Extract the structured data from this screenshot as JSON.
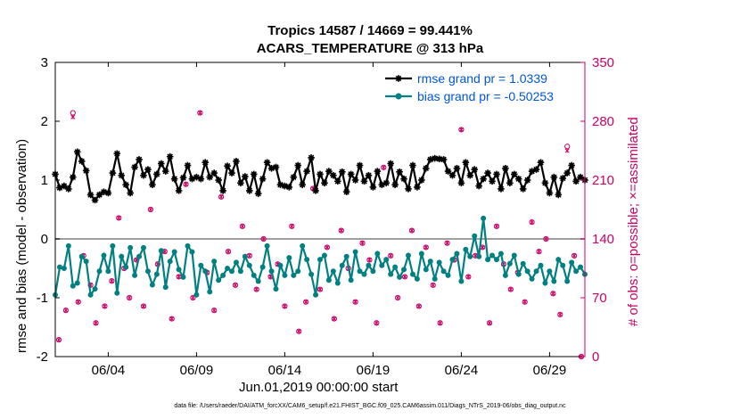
{
  "title_line1": "Tropics 14587 / 14669 = 99.441%",
  "title_line2": "ACARS_TEMPERATURE @ 313 hPa",
  "footer": "data file: /Users/raeder/DAI/ATM_forcXX/CAM6_setup/f.e21.FHIST_BGC.f09_025.CAM6assim.011/Diags_NTrS_2019-06/obs_diag_output.nc",
  "chart_data": {
    "type": "line",
    "title": "Tropics 14587 / 14669 = 99.441%\nACARS_TEMPERATURE @ 313 hPa",
    "xlabel": "Jun.01,2019 00:00:00 start",
    "ylabel": "rmse and bias (model - observation)",
    "ylabel_right": "# of obs: o=possible; ×=assimilated",
    "xlim": [
      0,
      30
    ],
    "ylim": [
      -2,
      3
    ],
    "ylim_right": [
      0,
      350
    ],
    "x_ticks": [
      3,
      8,
      13,
      18,
      23,
      28
    ],
    "x_tick_labels": [
      "06/04",
      "06/09",
      "06/14",
      "06/19",
      "06/24",
      "06/29"
    ],
    "y_ticks": [
      -2,
      -1,
      0,
      1,
      2,
      3
    ],
    "y_tick_labels": [
      "-2",
      "-1",
      "0",
      "1",
      "2",
      "3"
    ],
    "y_right_ticks": [
      0,
      70,
      140,
      210,
      280,
      350
    ],
    "y_right_tick_labels": [
      "0",
      "70",
      "140",
      "210",
      "280",
      "350"
    ],
    "colors": {
      "rmse": "#000000",
      "bias": "#008080",
      "obs": "#cc0066",
      "legend_text": "#0055dd",
      "zero_line": "#a0a0a0"
    },
    "legend": {
      "position": "top-right",
      "entries": [
        "rmse grand pr = 1.0339",
        "bias grand pr = -0.50253"
      ]
    },
    "series": [
      {
        "name": "rmse grand pr = 1.0339",
        "x": [
          0.0,
          0.25,
          0.5,
          0.75,
          1.0,
          1.25,
          1.5,
          1.75,
          2.0,
          2.25,
          2.5,
          2.75,
          3.0,
          3.25,
          3.5,
          3.75,
          4.0,
          4.25,
          4.5,
          4.75,
          5.0,
          5.25,
          5.5,
          5.75,
          6.0,
          6.25,
          6.5,
          6.75,
          7.0,
          7.25,
          7.5,
          7.75,
          8.0,
          8.25,
          8.5,
          8.75,
          9.0,
          9.25,
          9.5,
          9.75,
          10.0,
          10.25,
          10.5,
          10.75,
          11.0,
          11.25,
          11.5,
          11.75,
          12.0,
          12.25,
          12.5,
          12.75,
          13.0,
          13.25,
          13.5,
          13.75,
          14.0,
          14.25,
          14.5,
          14.75,
          15.0,
          15.25,
          15.5,
          15.75,
          16.0,
          16.25,
          16.5,
          16.75,
          17.0,
          17.25,
          17.5,
          17.75,
          18.0,
          18.25,
          18.5,
          18.75,
          19.0,
          19.25,
          19.5,
          19.75,
          20.0,
          20.25,
          20.5,
          20.75,
          21.0,
          21.25,
          21.5,
          21.75,
          22.0,
          22.25,
          22.5,
          22.75,
          23.0,
          23.25,
          23.5,
          23.75,
          24.0,
          24.25,
          24.5,
          24.75,
          25.0,
          25.25,
          25.5,
          25.75,
          26.0,
          26.25,
          26.5,
          26.75,
          27.0,
          27.25,
          27.5,
          27.75,
          28.0,
          28.25,
          28.5,
          28.75,
          29.0,
          29.25,
          29.5,
          29.75,
          30.0
        ],
        "values": [
          1.1,
          0.87,
          0.9,
          0.85,
          1.05,
          1.48,
          1.32,
          1.16,
          0.75,
          0.66,
          0.75,
          0.8,
          0.78,
          1.12,
          1.45,
          1.08,
          0.92,
          0.78,
          1.22,
          1.35,
          1.08,
          1.18,
          0.92,
          1.1,
          1.28,
          1.15,
          1.4,
          1.02,
          0.82,
          1.04,
          1.25,
          1.02,
          1.05,
          1.02,
          1.3,
          1.05,
          1.12,
          1.0,
          0.82,
          1.24,
          1.12,
          1.32,
          0.95,
          1.06,
          0.82,
          1.1,
          0.77,
          1.02,
          1.3,
          1.2,
          1.22,
          0.92,
          0.9,
          0.88,
          1.05,
          1.25,
          0.92,
          1.15,
          1.38,
          0.82,
          1.1,
          0.95,
          1.15,
          1.08,
          0.98,
          1.14,
          0.8,
          1.1,
          1.0,
          1.25,
          0.98,
          1.08,
          0.88,
          1.15,
          0.92,
          0.95,
          1.28,
          0.92,
          1.14,
          1.02,
          0.85,
          1.25,
          0.88,
          1.0,
          1.2,
          1.35,
          1.37,
          1.36,
          1.35,
          1.15,
          1.08,
          1.2,
          0.95,
          1.3,
          1.08,
          1.18,
          0.9,
          1.02,
          1.12,
          0.98,
          1.1,
          0.85,
          1.2,
          0.95,
          1.1,
          1.02,
          0.85,
          1.0,
          1.15,
          1.18,
          1.3,
          0.95,
          0.78,
          1.05,
          0.75,
          1.03,
          1.12,
          1.25,
          0.98,
          1.05,
          1.0
        ]
      },
      {
        "name": "bias grand pr = -0.50253",
        "x": [
          0.0,
          0.25,
          0.5,
          0.75,
          1.0,
          1.25,
          1.5,
          1.75,
          2.0,
          2.25,
          2.5,
          2.75,
          3.0,
          3.25,
          3.5,
          3.75,
          4.0,
          4.25,
          4.5,
          4.75,
          5.0,
          5.25,
          5.5,
          5.75,
          6.0,
          6.25,
          6.5,
          6.75,
          7.0,
          7.25,
          7.5,
          7.75,
          8.0,
          8.25,
          8.5,
          8.75,
          9.0,
          9.25,
          9.5,
          9.75,
          10.0,
          10.25,
          10.5,
          10.75,
          11.0,
          11.25,
          11.5,
          11.75,
          12.0,
          12.25,
          12.5,
          12.75,
          13.0,
          13.25,
          13.5,
          13.75,
          14.0,
          14.25,
          14.5,
          14.75,
          15.0,
          15.25,
          15.5,
          15.75,
          16.0,
          16.25,
          16.5,
          16.75,
          17.0,
          17.25,
          17.5,
          17.75,
          18.0,
          18.25,
          18.5,
          18.75,
          19.0,
          19.25,
          19.5,
          19.75,
          20.0,
          20.25,
          20.5,
          20.75,
          21.0,
          21.25,
          21.5,
          21.75,
          22.0,
          22.25,
          22.5,
          22.75,
          23.0,
          23.25,
          23.5,
          23.75,
          24.0,
          24.25,
          24.5,
          24.75,
          25.0,
          25.25,
          25.5,
          25.75,
          26.0,
          26.25,
          26.5,
          26.75,
          27.0,
          27.25,
          27.5,
          27.75,
          28.0,
          28.25,
          28.5,
          28.75,
          29.0,
          29.25,
          29.5,
          29.75,
          30.0
        ],
        "values": [
          -0.95,
          -0.48,
          -0.5,
          -0.12,
          -0.8,
          -0.75,
          -0.3,
          -0.38,
          -0.95,
          -0.85,
          -0.55,
          -0.28,
          -0.55,
          -0.12,
          -0.92,
          -0.3,
          -0.48,
          -0.15,
          -0.62,
          -0.3,
          -0.15,
          -0.55,
          -0.78,
          -0.6,
          -0.2,
          -0.82,
          -0.38,
          -0.22,
          -0.52,
          -0.65,
          -0.12,
          -0.22,
          -0.95,
          -0.45,
          -0.55,
          -0.9,
          -0.38,
          -0.7,
          -0.62,
          -0.5,
          -0.55,
          -0.4,
          -0.55,
          -0.3,
          -0.45,
          -0.62,
          -0.72,
          -0.48,
          -0.12,
          -0.55,
          -0.85,
          -0.45,
          -0.62,
          -0.32,
          -0.62,
          -0.55,
          -0.12,
          -0.35,
          -0.6,
          -0.95,
          -0.35,
          -0.28,
          -0.7,
          -0.55,
          -0.75,
          -0.45,
          -0.3,
          -0.7,
          -0.22,
          -0.55,
          -0.6,
          -0.45,
          -0.55,
          -0.25,
          -0.45,
          -0.35,
          -0.6,
          -0.48,
          -0.65,
          -0.52,
          -0.28,
          -0.6,
          -0.68,
          -0.25,
          -0.52,
          -0.38,
          -0.68,
          -0.4,
          -0.55,
          -0.62,
          -0.35,
          -0.25,
          -0.72,
          -0.18,
          -0.3,
          0.05,
          -0.3,
          0.35,
          -0.35,
          -0.28,
          -0.35,
          -0.25,
          -0.62,
          -0.42,
          -0.28,
          -0.6,
          -0.42,
          -0.55,
          -0.68,
          -0.55,
          -0.45,
          -0.75,
          -0.55,
          -0.72,
          -0.35,
          -0.45,
          -0.72,
          -0.4,
          -0.55,
          -0.48,
          -0.6
        ]
      },
      {
        "name": "possible obs (o)",
        "axis": "right",
        "x": [
          0.2,
          0.6,
          1.0,
          1.3,
          1.6,
          2.0,
          2.3,
          2.8,
          3.2,
          3.6,
          3.9,
          4.2,
          4.6,
          5.0,
          5.4,
          5.8,
          6.2,
          6.6,
          7.0,
          7.4,
          7.8,
          8.2,
          8.6,
          9.0,
          9.4,
          9.8,
          10.2,
          10.6,
          11.0,
          11.4,
          11.8,
          12.2,
          12.6,
          13.0,
          13.4,
          13.8,
          14.2,
          14.6,
          15.0,
          15.4,
          15.8,
          16.2,
          16.6,
          17.0,
          17.4,
          17.8,
          18.2,
          18.6,
          19.0,
          19.4,
          19.8,
          20.2,
          20.6,
          21.0,
          21.4,
          21.8,
          22.2,
          22.6,
          23.0,
          23.4,
          23.8,
          24.2,
          24.6,
          25.0,
          25.4,
          25.8,
          26.2,
          26.6,
          27.0,
          27.4,
          27.8,
          28.2,
          28.6,
          29.0,
          29.4,
          29.8
        ],
        "values": [
          20,
          55,
          290,
          65,
          120,
          85,
          40,
          60,
          90,
          165,
          105,
          70,
          115,
          60,
          175,
          110,
          125,
          45,
          95,
          205,
          70,
          290,
          100,
          55,
          190,
          125,
          85,
          155,
          120,
          80,
          140,
          95,
          110,
          60,
          155,
          30,
          65,
          200,
          80,
          130,
          45,
          150,
          105,
          65,
          135,
          115,
          40,
          225,
          120,
          70,
          95,
          150,
          60,
          130,
          85,
          40,
          135,
          115,
          270,
          95,
          120,
          130,
          40,
          155,
          110,
          80,
          100,
          65,
          160,
          125,
          140,
          75,
          50,
          250,
          120,
          0
        ]
      },
      {
        "name": "assimilated obs (×)",
        "axis": "right",
        "x": [
          0.2,
          0.6,
          1.0,
          1.3,
          1.6,
          2.0,
          2.3,
          2.8,
          3.2,
          3.6,
          3.9,
          4.2,
          4.6,
          5.0,
          5.4,
          5.8,
          6.2,
          6.6,
          7.0,
          7.4,
          7.8,
          8.2,
          8.6,
          9.0,
          9.4,
          9.8,
          10.2,
          10.6,
          11.0,
          11.4,
          11.8,
          12.2,
          12.6,
          13.0,
          13.4,
          13.8,
          14.2,
          14.6,
          15.0,
          15.4,
          15.8,
          16.2,
          16.6,
          17.0,
          17.4,
          17.8,
          18.2,
          18.6,
          19.0,
          19.4,
          19.8,
          20.2,
          20.6,
          21.0,
          21.4,
          21.8,
          22.2,
          22.6,
          23.0,
          23.4,
          23.8,
          24.2,
          24.6,
          25.0,
          25.4,
          25.8,
          26.2,
          26.6,
          27.0,
          27.4,
          27.8,
          28.2,
          28.6,
          29.0,
          29.4,
          29.8
        ],
        "values": [
          20,
          55,
          285,
          65,
          120,
          85,
          40,
          60,
          90,
          165,
          105,
          70,
          115,
          60,
          175,
          110,
          125,
          45,
          95,
          205,
          70,
          290,
          100,
          55,
          190,
          125,
          85,
          155,
          120,
          80,
          140,
          95,
          110,
          60,
          155,
          30,
          65,
          200,
          80,
          130,
          45,
          150,
          105,
          65,
          135,
          115,
          40,
          225,
          120,
          70,
          95,
          150,
          60,
          130,
          85,
          40,
          135,
          115,
          270,
          95,
          120,
          130,
          40,
          155,
          110,
          80,
          100,
          65,
          160,
          125,
          140,
          75,
          50,
          245,
          120,
          0
        ]
      }
    ]
  }
}
